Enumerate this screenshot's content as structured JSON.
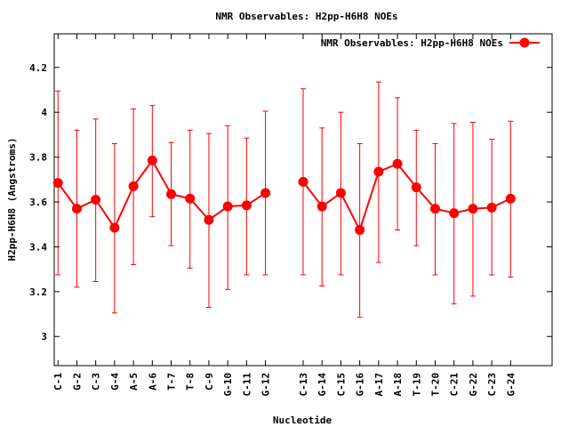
{
  "chart_data": {
    "type": "line",
    "title": "NMR Observables: H2pp-H6H8 NOEs",
    "xlabel": "Nucleotide",
    "ylabel": "H2pp-H6H8 (Angstroms)",
    "ylim": [
      2.87,
      4.35
    ],
    "yticks": [
      3,
      3.2,
      3.4,
      3.6,
      3.8,
      4,
      4.2
    ],
    "ytick_labels": [
      "3",
      "3.2",
      "3.4",
      "3.6",
      "3.8",
      "4",
      "4.2"
    ],
    "xlim": [
      0.8,
      27.2
    ],
    "legend_position": "top-right",
    "grid": false,
    "color": "#ff0000",
    "series": [
      {
        "name": "NMR Observables: H2pp-H6H8 NOEs",
        "segments": [
          {
            "x": [
              1,
              2,
              3,
              4,
              5,
              6,
              7,
              8,
              9,
              10,
              11,
              12
            ],
            "labels": [
              "C-1",
              "G-2",
              "C-3",
              "G-4",
              "A-5",
              "A-6",
              "T-7",
              "T-8",
              "C-9",
              "G-10",
              "C-11",
              "G-12"
            ],
            "y": [
              3.685,
              3.57,
              3.61,
              3.485,
              3.67,
              3.785,
              3.635,
              3.615,
              3.52,
              3.58,
              3.585,
              3.64
            ],
            "err_low": [
              3.275,
              3.22,
              3.245,
              3.105,
              3.32,
              3.535,
              3.405,
              3.305,
              3.13,
              3.21,
              3.275,
              3.275
            ],
            "err_high": [
              4.095,
              3.92,
              3.97,
              3.86,
              4.015,
              4.03,
              3.865,
              3.92,
              3.905,
              3.94,
              3.885,
              4.005
            ]
          },
          {
            "x": [
              14,
              15,
              16,
              17,
              18,
              19,
              20,
              21,
              22,
              23,
              24,
              25
            ],
            "labels": [
              "C-13",
              "G-14",
              "C-15",
              "G-16",
              "A-17",
              "A-18",
              "T-19",
              "T-20",
              "C-21",
              "G-22",
              "C-23",
              "G-24"
            ],
            "y": [
              3.69,
              3.58,
              3.64,
              3.475,
              3.735,
              3.77,
              3.665,
              3.57,
              3.55,
              3.57,
              3.575,
              3.615
            ],
            "err_low": [
              3.275,
              3.225,
              3.275,
              3.085,
              3.33,
              3.475,
              3.405,
              3.275,
              3.145,
              3.18,
              3.275,
              3.265
            ],
            "err_high": [
              4.105,
              3.93,
              4.0,
              3.86,
              4.135,
              4.065,
              3.92,
              3.86,
              3.95,
              3.955,
              3.88,
              3.96
            ]
          }
        ]
      }
    ]
  }
}
